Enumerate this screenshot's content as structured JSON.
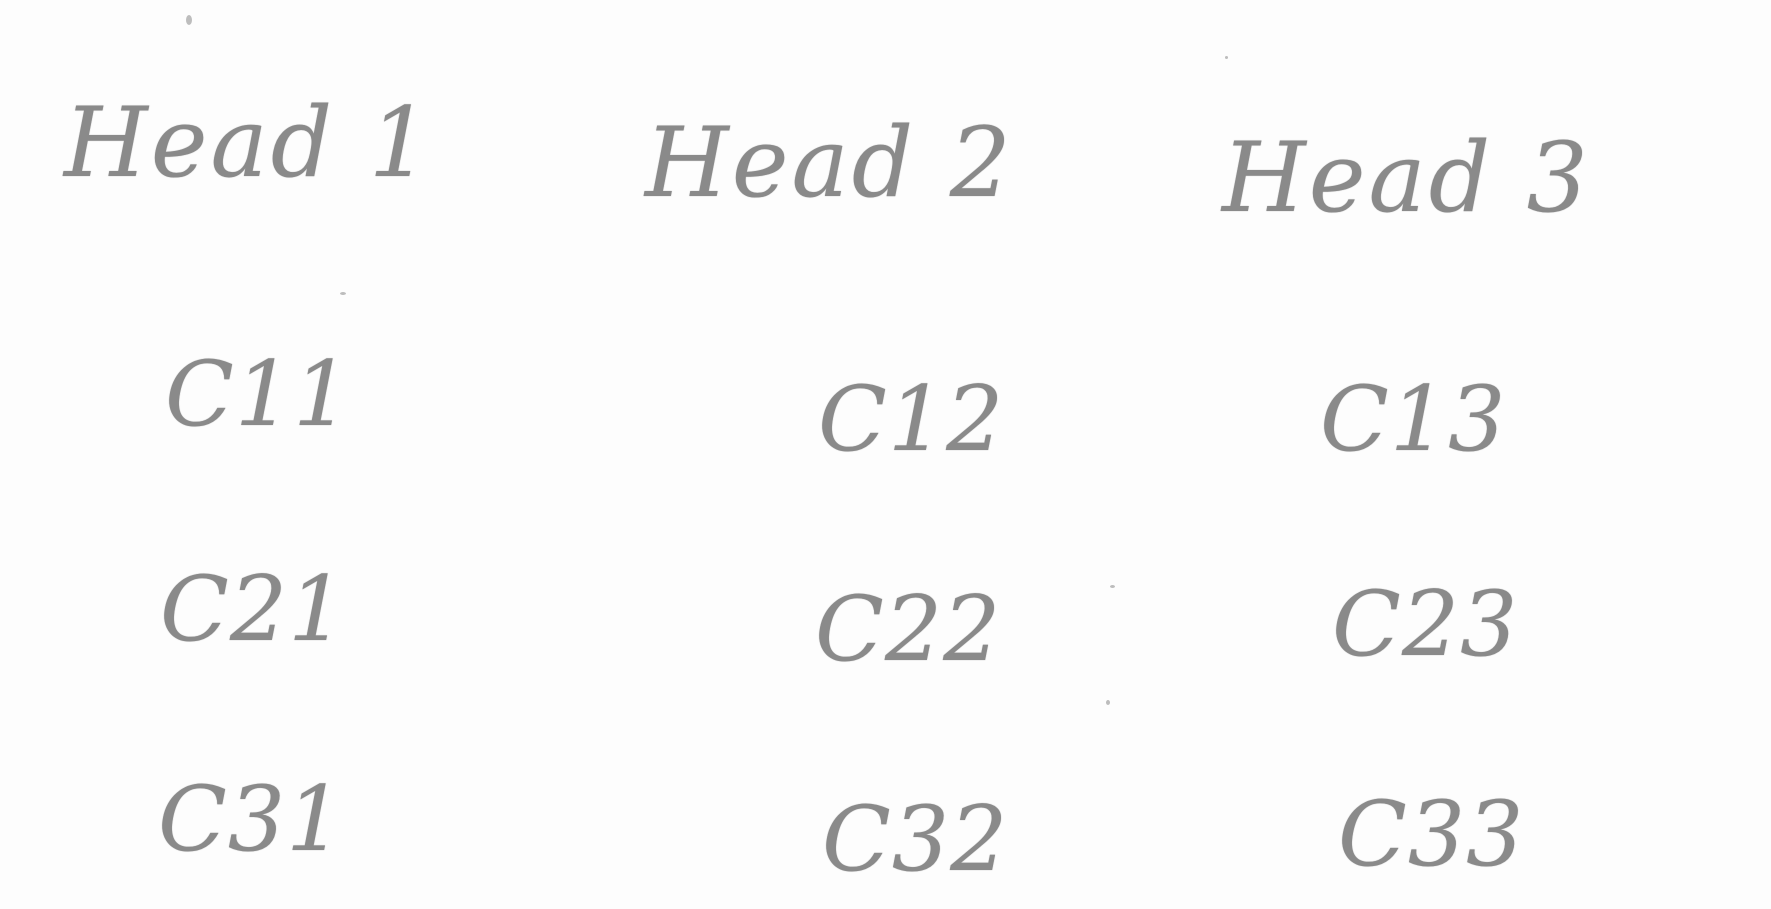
{
  "headers": [
    "Head 1",
    "Head 2",
    "Head 3"
  ],
  "rows": [
    [
      "C11",
      "C12",
      "C13"
    ],
    [
      "C21",
      "C22",
      "C23"
    ],
    [
      "C31",
      "C32",
      "C33"
    ]
  ],
  "ink_color": "#8a8a8a",
  "paper_color": "#fdfdfd"
}
